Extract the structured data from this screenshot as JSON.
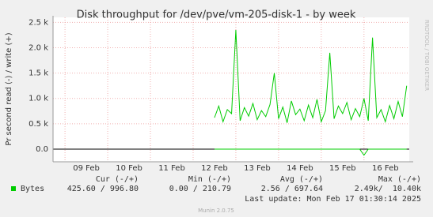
{
  "chart_data": {
    "type": "line",
    "title": "Disk throughput for /dev/pve/vm-205-disk-1 - by week",
    "y_label": "Pr second read (-) / write (+)",
    "watermark": "RRDTOOL / TOBI OETIKER",
    "xlim": [
      8.72,
      17.06
    ],
    "xticks": [
      {
        "value": 9.5,
        "label": "09 Feb"
      },
      {
        "value": 10.5,
        "label": "10 Feb"
      },
      {
        "value": 11.5,
        "label": "11 Feb"
      },
      {
        "value": 12.5,
        "label": "12 Feb"
      },
      {
        "value": 13.5,
        "label": "13 Feb"
      },
      {
        "value": 14.5,
        "label": "14 Feb"
      },
      {
        "value": 15.5,
        "label": "15 Feb"
      },
      {
        "value": 16.5,
        "label": "16 Feb"
      }
    ],
    "ylim": [
      -250,
      2600
    ],
    "yticks": [
      {
        "value": 0,
        "label": "0.0"
      },
      {
        "value": 500,
        "label": "0.5 k"
      },
      {
        "value": 1000,
        "label": "1.0 k"
      },
      {
        "value": 1500,
        "label": "1.5 k"
      },
      {
        "value": 2000,
        "label": "2.0 k"
      },
      {
        "value": 2500,
        "label": "2.5 k"
      }
    ],
    "grid": true,
    "x": [
      12.5,
      12.6,
      12.7,
      12.8,
      12.9,
      13.0,
      13.1,
      13.2,
      13.3,
      13.4,
      13.5,
      13.6,
      13.7,
      13.8,
      13.9,
      14.0,
      14.1,
      14.2,
      14.3,
      14.4,
      14.5,
      14.6,
      14.7,
      14.8,
      14.9,
      15.0,
      15.1,
      15.2,
      15.3,
      15.4,
      15.5,
      15.6,
      15.7,
      15.8,
      15.9,
      16.0,
      16.1,
      16.2,
      16.3,
      16.4,
      16.5,
      16.6,
      16.7,
      16.8,
      16.9,
      17.0
    ],
    "series": [
      {
        "name": "Bytes",
        "color": "#00cc00",
        "values": [
          620,
          850,
          540,
          780,
          700,
          2350,
          560,
          820,
          650,
          900,
          580,
          760,
          640,
          880,
          1500,
          600,
          830,
          520,
          950,
          680,
          790,
          560,
          870,
          620,
          980,
          540,
          760,
          1900,
          600,
          850,
          700,
          920,
          580,
          800,
          640,
          1000,
          560,
          2200,
          620,
          780,
          540,
          860,
          600,
          940,
          640,
          1250
        ]
      },
      {
        "color": "#00cc00",
        "values": [
          0,
          0,
          0,
          0,
          0,
          0,
          0,
          0,
          0,
          0,
          0,
          0,
          0,
          0,
          0,
          0,
          0,
          0,
          0,
          0,
          0,
          0,
          0,
          0,
          0,
          0,
          0,
          0,
          0,
          0,
          0,
          0,
          0,
          0,
          0,
          -120,
          0,
          0,
          0,
          0,
          0,
          0,
          0,
          0,
          0,
          0
        ]
      }
    ],
    "legend_table": {
      "headers": [
        "Cur (-/+)",
        "Min (-/+)",
        "Avg (-/+)",
        "Max (-/+)"
      ],
      "rows": [
        {
          "label": "Bytes",
          "cells": [
            "425.60 / 996.80",
            "0.00 / 210.79",
            "2.56 / 697.64",
            "2.49k/  10.40k"
          ]
        }
      ]
    },
    "last_update": "Last update: Mon Feb 17 01:30:14 2025",
    "footer": "Munin 2.0.75"
  }
}
